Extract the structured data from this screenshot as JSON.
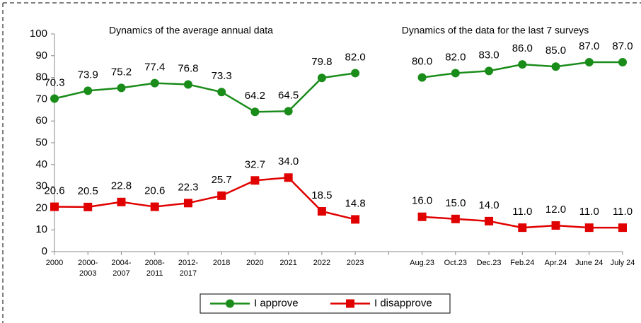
{
  "chart_data": {
    "type": "line",
    "annotations": [
      "Dynamics of the average annual data",
      "Dynamics of the data for the last 7 surveys"
    ],
    "categories": [
      "2000",
      "2000-2003",
      "2004-2007",
      "2008-2011",
      "2012-2017",
      "2018",
      "2020",
      "2021",
      "2022",
      "2023",
      null,
      "Aug.23",
      "Oct.23",
      "Dec.23",
      "Feb.24",
      "Apr.24",
      "June 24",
      "July 24"
    ],
    "series": [
      {
        "name": "I approve",
        "color": "#1a8c1a",
        "marker": "circle",
        "values": [
          70.3,
          73.9,
          75.2,
          77.4,
          76.8,
          73.3,
          64.2,
          64.5,
          79.8,
          82.0,
          null,
          80.0,
          82.0,
          83.0,
          86.0,
          85.0,
          87.0,
          87.0
        ],
        "value_labels": [
          "70.3",
          "73.9",
          "75.2",
          "77.4",
          "76.8",
          "73.3",
          "64.2",
          "64.5",
          "79.8",
          "82.0",
          null,
          "80.0",
          "82.0",
          "83.0",
          "86.0",
          "85.0",
          "87.0",
          "87.0"
        ]
      },
      {
        "name": "I disapprove",
        "color": "#e00000",
        "marker": "square",
        "values": [
          20.6,
          20.5,
          22.8,
          20.6,
          22.3,
          25.7,
          32.7,
          34.0,
          18.5,
          14.8,
          null,
          16.0,
          15.0,
          14.0,
          11.0,
          12.0,
          11.0,
          11.0
        ],
        "value_labels": [
          "20.6",
          "20.5",
          "22.8",
          "20.6",
          "22.3",
          "25.7",
          "32.7",
          "34.0",
          "18.5",
          "14.8",
          null,
          "16.0",
          "15.0",
          "14.0",
          "11.0",
          "12.0",
          "11.0",
          "11.0"
        ]
      }
    ],
    "ylim": [
      0,
      100
    ],
    "yticks": [
      0,
      10,
      20,
      30,
      40,
      50,
      60,
      70,
      80,
      90,
      100
    ],
    "grid": false,
    "legend": "bottom"
  }
}
